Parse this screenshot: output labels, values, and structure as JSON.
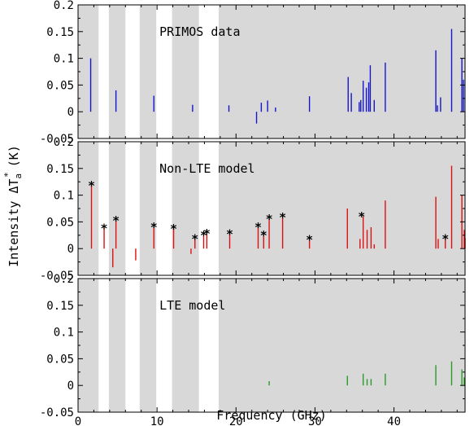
{
  "chart_data": {
    "type": "bar",
    "xlabel": "Frequency (GHz)",
    "ylabel_main": "Intensity ΔT",
    "ylabel_sub": "a",
    "ylabel_sup": "*",
    "ylabel_unit": "(K)",
    "xlim": [
      0,
      49
    ],
    "x_ticks": [
      "0",
      "10",
      "20",
      "30",
      "40"
    ],
    "ylim": [
      -0.05,
      0.2
    ],
    "y_ticks": [
      "0.2",
      "0.15",
      "0.1",
      "0.05",
      "0",
      "-0.05"
    ],
    "y_tick_values": [
      0.2,
      0.15,
      0.1,
      0.05,
      0,
      -0.05
    ],
    "shaded_bands_ghz": [
      [
        0,
        2.6
      ],
      [
        3.9,
        6.0
      ],
      [
        7.8,
        9.9
      ],
      [
        11.9,
        15.3
      ],
      [
        17.8,
        49
      ]
    ],
    "band_color": "#d8d8d8",
    "panels": [
      {
        "title": "PRIMOS data",
        "color": "#1515cc",
        "lines": [
          [
            1.6,
            0.1
          ],
          [
            4.8,
            0.04
          ],
          [
            9.6,
            0.03
          ],
          [
            14.5,
            0.013
          ],
          [
            19.1,
            0.012
          ],
          [
            22.6,
            -0.022
          ],
          [
            23.2,
            0.017
          ],
          [
            24.0,
            0.021
          ],
          [
            25.0,
            0.008
          ],
          [
            29.3,
            0.029
          ],
          [
            34.2,
            0.065
          ],
          [
            34.6,
            0.035
          ],
          [
            35.6,
            0.018
          ],
          [
            35.8,
            0.022
          ],
          [
            36.1,
            0.058
          ],
          [
            36.5,
            0.045
          ],
          [
            36.8,
            0.055
          ],
          [
            37.0,
            0.087
          ],
          [
            37.5,
            0.022
          ],
          [
            38.9,
            0.092
          ],
          [
            45.3,
            0.115
          ],
          [
            45.5,
            0.012
          ],
          [
            45.9,
            0.027
          ],
          [
            47.3,
            0.155
          ],
          [
            48.6,
            0.1
          ],
          [
            48.8,
            0.06
          ]
        ],
        "star_x": []
      },
      {
        "title": "Non-LTE model",
        "color": "#dd1111",
        "lines": [
          [
            1.7,
            0.118
          ],
          [
            3.3,
            0.038
          ],
          [
            4.4,
            -0.035
          ],
          [
            4.8,
            0.052
          ],
          [
            7.3,
            -0.022
          ],
          [
            9.6,
            0.04
          ],
          [
            12.1,
            0.037
          ],
          [
            14.3,
            -0.01
          ],
          [
            14.8,
            0.018
          ],
          [
            15.9,
            0.025
          ],
          [
            16.3,
            0.028
          ],
          [
            19.2,
            0.027
          ],
          [
            22.8,
            0.04
          ],
          [
            23.5,
            0.025
          ],
          [
            24.2,
            0.055
          ],
          [
            25.9,
            0.058
          ],
          [
            29.3,
            0.016
          ],
          [
            34.1,
            0.075
          ],
          [
            35.7,
            0.018
          ],
          [
            36.1,
            0.06
          ],
          [
            36.6,
            0.035
          ],
          [
            37.1,
            0.04
          ],
          [
            37.5,
            0.008
          ],
          [
            38.9,
            0.09
          ],
          [
            45.3,
            0.097
          ],
          [
            45.6,
            0.018
          ],
          [
            46.5,
            0.018
          ],
          [
            47.3,
            0.155
          ],
          [
            48.6,
            0.1
          ],
          [
            48.9,
            0.035
          ],
          [
            49.0,
            0.02
          ]
        ],
        "star_x": [
          1.7,
          3.3,
          4.8,
          9.6,
          12.1,
          14.8,
          15.9,
          16.3,
          19.2,
          22.8,
          23.5,
          24.2,
          25.9,
          29.3,
          35.9,
          46.5
        ]
      },
      {
        "title": "LTE model",
        "color": "#2a9a2a",
        "lines": [
          [
            24.2,
            0.008
          ],
          [
            34.1,
            0.018
          ],
          [
            36.1,
            0.022
          ],
          [
            36.6,
            0.012
          ],
          [
            37.1,
            0.012
          ],
          [
            38.9,
            0.022
          ],
          [
            45.3,
            0.038
          ],
          [
            47.3,
            0.045
          ],
          [
            48.6,
            0.03
          ],
          [
            48.9,
            0.015
          ]
        ],
        "star_x": []
      }
    ]
  }
}
